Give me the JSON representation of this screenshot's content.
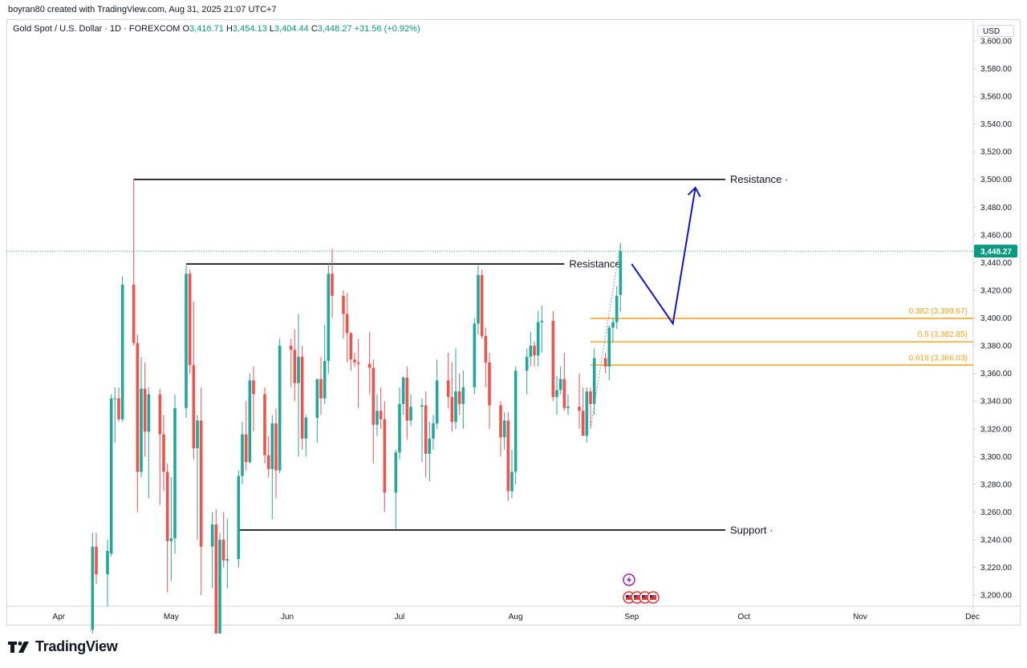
{
  "header": {
    "credit": "boyran80 created with TradingView.com, Aug 31, 2025 21:07 UTC+7",
    "symbol": "Gold Spot / U.S. Dollar · 1D · FOREXCOM",
    "o_label": "O",
    "o_value": "3,416.71",
    "h_label": "H",
    "h_value": "3,454.13",
    "l_label": "L",
    "l_value": "3,404.44",
    "c_label": "C",
    "c_value": "3,448.27",
    "change": "+31.56 (+0.92%)",
    "currency": "USD"
  },
  "logo": {
    "text": "TradingView",
    "icon": "tradingview-logo-icon"
  },
  "colors": {
    "up": "#26a69a",
    "down": "#ef5350",
    "fib": "#f7a21b",
    "arrow": "#1414c8",
    "level": "#000000",
    "last_price": "#089981",
    "event": "#9c27b0"
  },
  "chart_data": {
    "type": "candlestick",
    "title": "Gold Spot / U.S. Dollar · 1D · FOREXCOM",
    "ylim": [
      3192,
      3615
    ],
    "yticks": [
      3200,
      3220,
      3240,
      3260,
      3280,
      3300,
      3320,
      3340,
      3360,
      3380,
      3400,
      3420,
      3440,
      3460,
      3480,
      3500,
      3520,
      3540,
      3560,
      3580,
      3600
    ],
    "ytick_labels": [
      "3,200.00",
      "3,220.00",
      "3,240.00",
      "3,260.00",
      "3,280.00",
      "3,300.00",
      "3,320.00",
      "3,340.00",
      "3,360.00",
      "3,380.00",
      "3,400.00",
      "3,420.00",
      "3,440.00",
      "3,460.00",
      "3,480.00",
      "3,500.00",
      "3,520.00",
      "3,540.00",
      "3,560.00",
      "3,580.00",
      "3,600.00"
    ],
    "xticks": [
      "2025-04-01",
      "2025-05-01",
      "2025-06-01",
      "2025-07-01",
      "2025-08-01",
      "2025-09-01",
      "2025-10-01",
      "2025-11-01",
      "2025-12-01"
    ],
    "xtick_labels": [
      "Apr",
      "May",
      "Jun",
      "Jul",
      "Aug",
      "Sep",
      "Oct",
      "Nov",
      "Dec"
    ],
    "xlim": [
      "2025-03-18",
      "2025-12-01"
    ],
    "last_price": 3448.27,
    "last_price_label": "3,448.27",
    "candles": [
      {
        "d": "2025-04-10",
        "o": 3175,
        "h": 3245,
        "l": 3170,
        "c": 3235
      },
      {
        "d": "2025-04-11",
        "o": 3235,
        "h": 3245,
        "l": 3208,
        "c": 3215
      },
      {
        "d": "2025-04-14",
        "o": 3215,
        "h": 3240,
        "l": 3192,
        "c": 3232
      },
      {
        "d": "2025-04-15",
        "o": 3230,
        "h": 3345,
        "l": 3228,
        "c": 3342
      },
      {
        "d": "2025-04-16",
        "o": 3342,
        "h": 3350,
        "l": 3310,
        "c": 3342
      },
      {
        "d": "2025-04-17",
        "o": 3342,
        "h": 3350,
        "l": 3325,
        "c": 3327
      },
      {
        "d": "2025-04-18",
        "o": 3327,
        "h": 3430,
        "l": 3325,
        "c": 3424
      },
      {
        "d": "2025-04-21",
        "o": 3424,
        "h": 3500,
        "l": 3380,
        "c": 3382
      },
      {
        "d": "2025-04-22",
        "o": 3382,
        "h": 3388,
        "l": 3260,
        "c": 3289
      },
      {
        "d": "2025-04-23",
        "o": 3289,
        "h": 3372,
        "l": 3285,
        "c": 3349
      },
      {
        "d": "2025-04-24",
        "o": 3349,
        "h": 3368,
        "l": 3300,
        "c": 3318
      },
      {
        "d": "2025-04-25",
        "o": 3318,
        "h": 3350,
        "l": 3270,
        "c": 3345
      },
      {
        "d": "2025-04-28",
        "o": 3345,
        "h": 3349,
        "l": 3265,
        "c": 3316
      },
      {
        "d": "2025-04-29",
        "o": 3316,
        "h": 3330,
        "l": 3275,
        "c": 3289
      },
      {
        "d": "2025-04-30",
        "o": 3289,
        "h": 3295,
        "l": 3202,
        "c": 3239
      },
      {
        "d": "2025-05-01",
        "o": 3239,
        "h": 3285,
        "l": 3210,
        "c": 3241
      },
      {
        "d": "2025-05-02",
        "o": 3241,
        "h": 3345,
        "l": 3230,
        "c": 3335
      },
      {
        "d": "2025-05-05",
        "o": 3335,
        "h": 3438,
        "l": 3328,
        "c": 3432
      },
      {
        "d": "2025-05-06",
        "o": 3432,
        "h": 3435,
        "l": 3360,
        "c": 3366
      },
      {
        "d": "2025-05-07",
        "o": 3366,
        "h": 3412,
        "l": 3298,
        "c": 3306
      },
      {
        "d": "2025-05-08",
        "o": 3306,
        "h": 3330,
        "l": 3240,
        "c": 3326
      },
      {
        "d": "2025-05-09",
        "o": 3326,
        "h": 3350,
        "l": 3200,
        "c": 3235
      },
      {
        "d": "2025-05-12",
        "o": 3235,
        "h": 3260,
        "l": 3205,
        "c": 3251
      },
      {
        "d": "2025-05-13",
        "o": 3251,
        "h": 3262,
        "l": 3160,
        "c": 3170
      },
      {
        "d": "2025-05-14",
        "o": 3170,
        "h": 3245,
        "l": 3155,
        "c": 3240
      },
      {
        "d": "2025-05-15",
        "o": 3240,
        "h": 3260,
        "l": 3220,
        "c": 3225
      },
      {
        "d": "2025-05-16",
        "o": 3225,
        "h": 3255,
        "l": 3205,
        "c": 3226
      },
      {
        "d": "2025-05-19",
        "o": 3226,
        "h": 3290,
        "l": 3220,
        "c": 3286
      },
      {
        "d": "2025-05-20",
        "o": 3286,
        "h": 3325,
        "l": 3280,
        "c": 3316
      },
      {
        "d": "2025-05-21",
        "o": 3316,
        "h": 3340,
        "l": 3290,
        "c": 3296
      },
      {
        "d": "2025-05-22",
        "o": 3296,
        "h": 3360,
        "l": 3295,
        "c": 3355
      },
      {
        "d": "2025-05-23",
        "o": 3355,
        "h": 3365,
        "l": 3318,
        "c": 3345
      },
      {
        "d": "2025-05-26",
        "o": 3345,
        "h": 3350,
        "l": 3295,
        "c": 3301
      },
      {
        "d": "2025-05-27",
        "o": 3301,
        "h": 3315,
        "l": 3285,
        "c": 3291
      },
      {
        "d": "2025-05-28",
        "o": 3291,
        "h": 3330,
        "l": 3255,
        "c": 3324
      },
      {
        "d": "2025-05-29",
        "o": 3324,
        "h": 3335,
        "l": 3270,
        "c": 3290
      },
      {
        "d": "2025-05-30",
        "o": 3290,
        "h": 3385,
        "l": 3288,
        "c": 3380
      },
      {
        "d": "2025-06-02",
        "o": 3380,
        "h": 3385,
        "l": 3350,
        "c": 3377
      },
      {
        "d": "2025-06-03",
        "o": 3377,
        "h": 3392,
        "l": 3340,
        "c": 3353
      },
      {
        "d": "2025-06-04",
        "o": 3353,
        "h": 3403,
        "l": 3300,
        "c": 3372
      },
      {
        "d": "2025-06-05",
        "o": 3372,
        "h": 3380,
        "l": 3305,
        "c": 3313
      },
      {
        "d": "2025-06-06",
        "o": 3313,
        "h": 3330,
        "l": 3300,
        "c": 3328
      },
      {
        "d": "2025-06-09",
        "o": 3328,
        "h": 3355,
        "l": 3310,
        "c": 3356
      },
      {
        "d": "2025-06-10",
        "o": 3356,
        "h": 3372,
        "l": 3330,
        "c": 3342
      },
      {
        "d": "2025-06-11",
        "o": 3342,
        "h": 3395,
        "l": 3338,
        "c": 3369
      },
      {
        "d": "2025-06-12",
        "o": 3369,
        "h": 3440,
        "l": 3360,
        "c": 3432
      },
      {
        "d": "2025-06-13",
        "o": 3432,
        "h": 3450,
        "l": 3400,
        "c": 3416
      },
      {
        "d": "2025-06-16",
        "o": 3416,
        "h": 3420,
        "l": 3385,
        "c": 3403
      },
      {
        "d": "2025-06-17",
        "o": 3403,
        "h": 3418,
        "l": 3368,
        "c": 3389
      },
      {
        "d": "2025-06-18",
        "o": 3389,
        "h": 3390,
        "l": 3362,
        "c": 3370
      },
      {
        "d": "2025-06-19",
        "o": 3370,
        "h": 3375,
        "l": 3365,
        "c": 3368
      },
      {
        "d": "2025-06-20",
        "o": 3368,
        "h": 3385,
        "l": 3335,
        "c": 3367
      },
      {
        "d": "2025-06-23",
        "o": 3367,
        "h": 3390,
        "l": 3345,
        "c": 3364
      },
      {
        "d": "2025-06-24",
        "o": 3364,
        "h": 3370,
        "l": 3295,
        "c": 3323
      },
      {
        "d": "2025-06-25",
        "o": 3323,
        "h": 3345,
        "l": 3315,
        "c": 3333
      },
      {
        "d": "2025-06-26",
        "o": 3333,
        "h": 3350,
        "l": 3320,
        "c": 3327
      },
      {
        "d": "2025-06-27",
        "o": 3327,
        "h": 3340,
        "l": 3260,
        "c": 3274
      },
      {
        "d": "2025-06-30",
        "o": 3274,
        "h": 3305,
        "l": 3248,
        "c": 3303
      },
      {
        "d": "2025-07-01",
        "o": 3303,
        "h": 3350,
        "l": 3298,
        "c": 3338
      },
      {
        "d": "2025-07-02",
        "o": 3338,
        "h": 3358,
        "l": 3330,
        "c": 3357
      },
      {
        "d": "2025-07-03",
        "o": 3357,
        "h": 3365,
        "l": 3312,
        "c": 3326
      },
      {
        "d": "2025-07-04",
        "o": 3326,
        "h": 3345,
        "l": 3322,
        "c": 3336
      },
      {
        "d": "2025-07-07",
        "o": 3336,
        "h": 3342,
        "l": 3296,
        "c": 3337
      },
      {
        "d": "2025-07-08",
        "o": 3337,
        "h": 3347,
        "l": 3285,
        "c": 3302
      },
      {
        "d": "2025-07-09",
        "o": 3302,
        "h": 3325,
        "l": 3282,
        "c": 3313
      },
      {
        "d": "2025-07-10",
        "o": 3313,
        "h": 3330,
        "l": 3305,
        "c": 3324
      },
      {
        "d": "2025-07-11",
        "o": 3324,
        "h": 3370,
        "l": 3320,
        "c": 3355
      },
      {
        "d": "2025-07-14",
        "o": 3355,
        "h": 3375,
        "l": 3335,
        "c": 3343
      },
      {
        "d": "2025-07-15",
        "o": 3343,
        "h": 3368,
        "l": 3318,
        "c": 3325
      },
      {
        "d": "2025-07-16",
        "o": 3325,
        "h": 3378,
        "l": 3320,
        "c": 3347
      },
      {
        "d": "2025-07-17",
        "o": 3347,
        "h": 3360,
        "l": 3330,
        "c": 3338
      },
      {
        "d": "2025-07-18",
        "o": 3338,
        "h": 3362,
        "l": 3320,
        "c": 3350
      },
      {
        "d": "2025-07-21",
        "o": 3350,
        "h": 3400,
        "l": 3345,
        "c": 3396
      },
      {
        "d": "2025-07-22",
        "o": 3396,
        "h": 3438,
        "l": 3388,
        "c": 3431
      },
      {
        "d": "2025-07-23",
        "o": 3431,
        "h": 3435,
        "l": 3385,
        "c": 3387
      },
      {
        "d": "2025-07-24",
        "o": 3387,
        "h": 3393,
        "l": 3350,
        "c": 3368
      },
      {
        "d": "2025-07-25",
        "o": 3368,
        "h": 3375,
        "l": 3320,
        "c": 3337
      },
      {
        "d": "2025-07-28",
        "o": 3337,
        "h": 3340,
        "l": 3300,
        "c": 3314
      },
      {
        "d": "2025-07-29",
        "o": 3314,
        "h": 3332,
        "l": 3305,
        "c": 3326
      },
      {
        "d": "2025-07-30",
        "o": 3326,
        "h": 3332,
        "l": 3268,
        "c": 3275
      },
      {
        "d": "2025-07-31",
        "o": 3275,
        "h": 3305,
        "l": 3270,
        "c": 3289
      },
      {
        "d": "2025-08-01",
        "o": 3289,
        "h": 3365,
        "l": 3280,
        "c": 3362
      },
      {
        "d": "2025-08-04",
        "o": 3362,
        "h": 3378,
        "l": 3345,
        "c": 3372
      },
      {
        "d": "2025-08-05",
        "o": 3372,
        "h": 3390,
        "l": 3365,
        "c": 3380
      },
      {
        "d": "2025-08-06",
        "o": 3380,
        "h": 3383,
        "l": 3365,
        "c": 3373
      },
      {
        "d": "2025-08-07",
        "o": 3373,
        "h": 3405,
        "l": 3365,
        "c": 3397
      },
      {
        "d": "2025-08-08",
        "o": 3397,
        "h": 3409,
        "l": 3375,
        "c": 3398
      },
      {
        "d": "2025-08-11",
        "o": 3398,
        "h": 3405,
        "l": 3340,
        "c": 3343
      },
      {
        "d": "2025-08-12",
        "o": 3343,
        "h": 3358,
        "l": 3330,
        "c": 3348
      },
      {
        "d": "2025-08-13",
        "o": 3348,
        "h": 3365,
        "l": 3345,
        "c": 3356
      },
      {
        "d": "2025-08-14",
        "o": 3356,
        "h": 3375,
        "l": 3333,
        "c": 3335
      },
      {
        "d": "2025-08-15",
        "o": 3335,
        "h": 3345,
        "l": 3330,
        "c": 3336
      },
      {
        "d": "2025-08-18",
        "o": 3336,
        "h": 3360,
        "l": 3320,
        "c": 3333
      },
      {
        "d": "2025-08-19",
        "o": 3333,
        "h": 3350,
        "l": 3315,
        "c": 3315
      },
      {
        "d": "2025-08-20",
        "o": 3315,
        "h": 3350,
        "l": 3310,
        "c": 3347
      },
      {
        "d": "2025-08-21",
        "o": 3347,
        "h": 3350,
        "l": 3320,
        "c": 3338
      },
      {
        "d": "2025-08-22",
        "o": 3338,
        "h": 3378,
        "l": 3330,
        "c": 3371
      },
      {
        "d": "2025-08-25",
        "o": 3371,
        "h": 3375,
        "l": 3360,
        "c": 3365
      },
      {
        "d": "2025-08-26",
        "o": 3365,
        "h": 3395,
        "l": 3355,
        "c": 3393
      },
      {
        "d": "2025-08-27",
        "o": 3393,
        "h": 3400,
        "l": 3382,
        "c": 3397
      },
      {
        "d": "2025-08-28",
        "o": 3397,
        "h": 3423,
        "l": 3392,
        "c": 3416
      },
      {
        "d": "2025-08-29",
        "o": 3416.71,
        "h": 3454.13,
        "l": 3404.44,
        "c": 3448.27
      }
    ],
    "levels": [
      {
        "name": "Resistance",
        "y": 3500,
        "x0": "2025-04-21",
        "x1": "2025-09-26",
        "label": "Resistance ·"
      },
      {
        "name": "Resistance",
        "y": 3439,
        "x0": "2025-05-05",
        "x1": "2025-08-14",
        "label": "Resistance"
      },
      {
        "name": "Support",
        "y": 3247,
        "x0": "2025-05-19",
        "x1": "2025-09-26",
        "label": "Support ·"
      }
    ],
    "fib_levels": [
      {
        "ratio": "0.382",
        "y": 3399.67,
        "label": "0.382 (3,399.67)"
      },
      {
        "ratio": "0.5",
        "y": 3382.85,
        "label": "0.5 (3,382.85)"
      },
      {
        "ratio": "0.618",
        "y": 3366.03,
        "label": "0.618 (3,366.03)"
      }
    ],
    "fib_start": "2025-08-21",
    "projection_path": [
      {
        "d": "2025-09-01",
        "y": 3439
      },
      {
        "d": "2025-09-12",
        "y": 3396
      },
      {
        "d": "2025-09-18",
        "y": 3494
      }
    ],
    "event_markers": [
      "lightning-icon",
      "us-flag-icon",
      "us-flag-icon",
      "us-flag-icon",
      "us-flag-icon"
    ]
  }
}
